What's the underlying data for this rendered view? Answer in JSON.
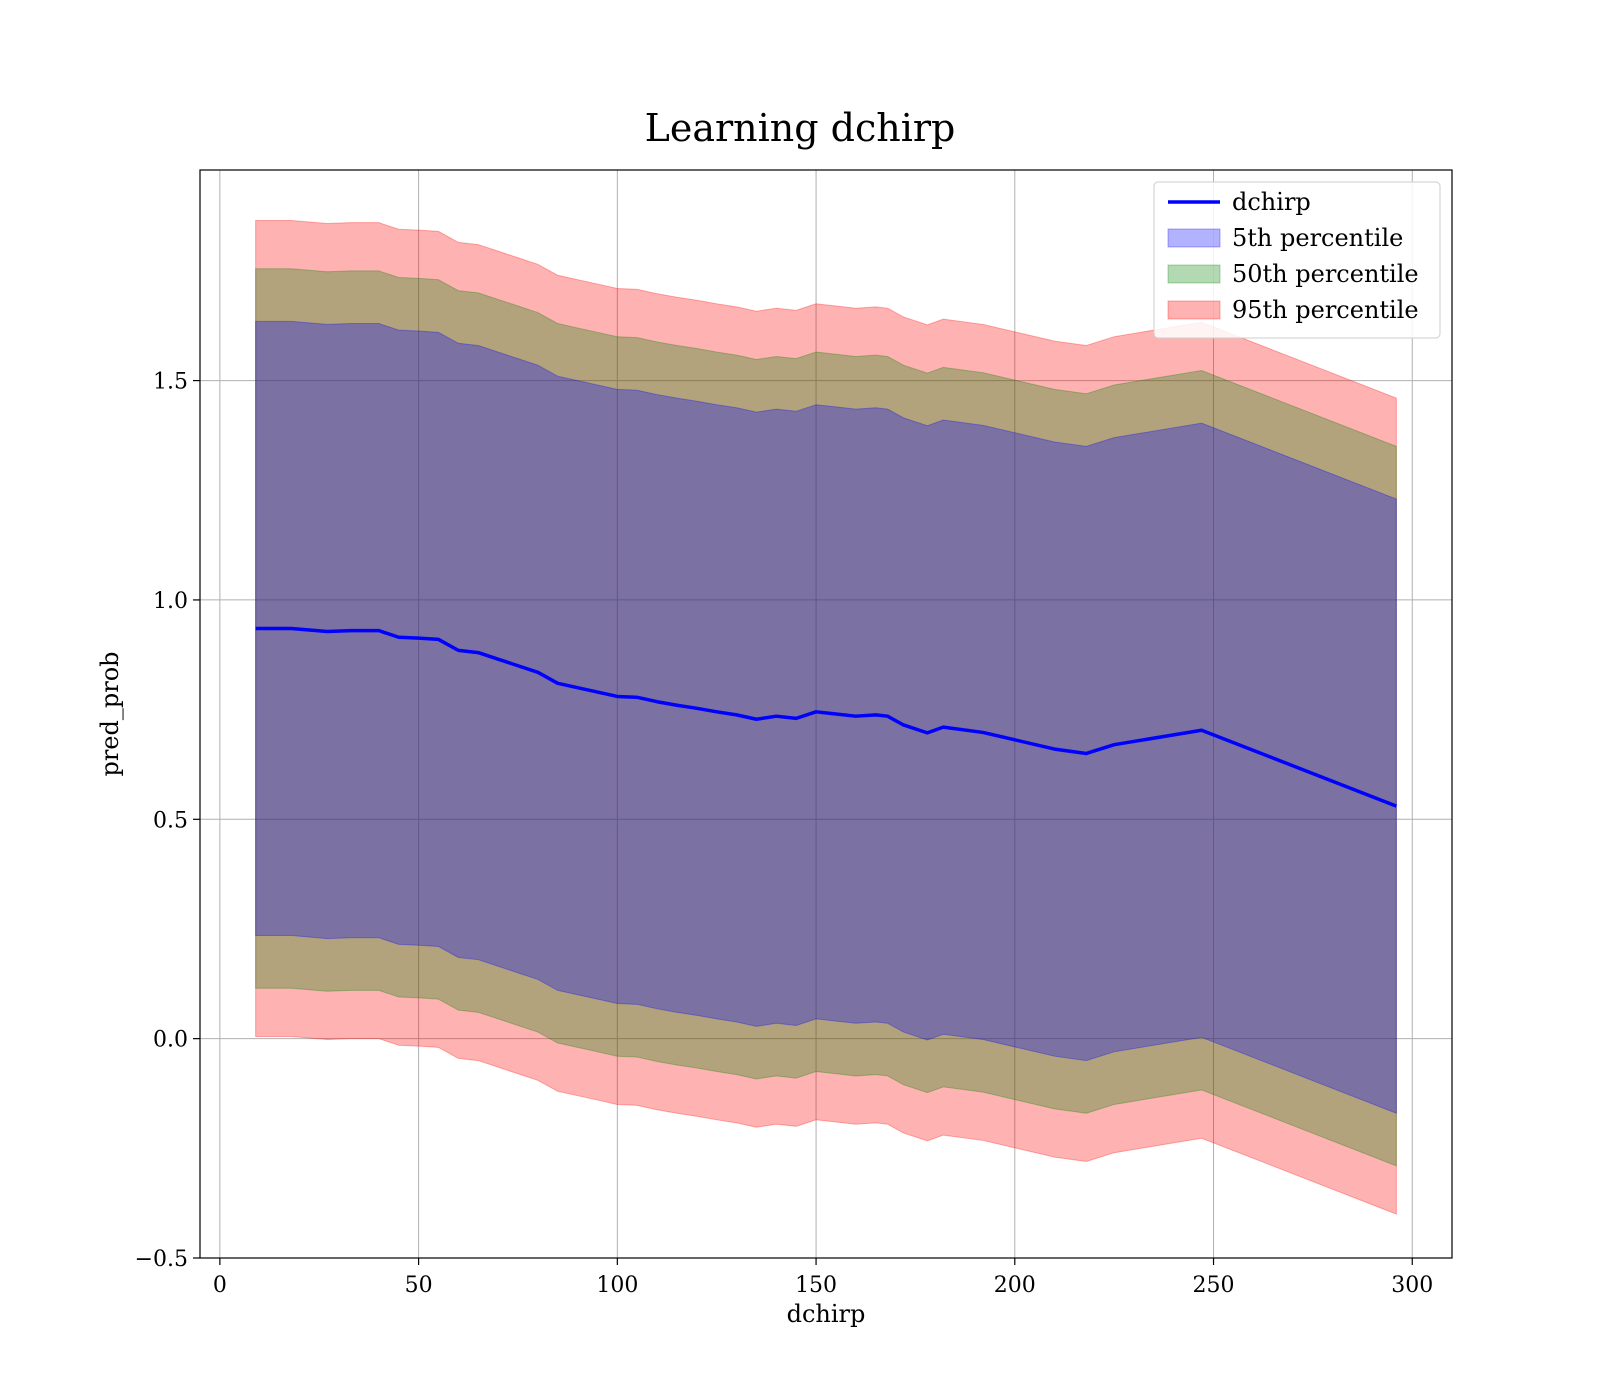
{
  "chart_data": {
    "type": "line",
    "title": "Learning dchirp",
    "xlabel": "dchirp",
    "ylabel": "pred_prob",
    "xlim": [
      -5,
      310
    ],
    "ylim": [
      -0.5,
      1.98
    ],
    "xticks": [
      0,
      50,
      100,
      150,
      200,
      250,
      300
    ],
    "yticks": [
      -0.5,
      0.0,
      0.5,
      1.0,
      1.5
    ],
    "xtick_labels": [
      "0",
      "50",
      "100",
      "150",
      "200",
      "250",
      "300"
    ],
    "ytick_labels": [
      "−0.5",
      "0.0",
      "0.5",
      "1.0",
      "1.5"
    ],
    "grid": true,
    "legend_position": "top-right",
    "x": [
      9,
      18,
      27,
      33,
      40,
      45,
      50,
      55,
      60,
      65,
      70,
      75,
      80,
      85,
      90,
      95,
      100,
      105,
      110,
      115,
      120,
      125,
      130,
      135,
      140,
      145,
      150,
      155,
      160,
      165,
      168,
      172,
      178,
      182,
      192,
      210,
      218,
      225,
      247,
      296
    ],
    "series": [
      {
        "name": "dchirp",
        "kind": "line",
        "color": "#0000ff",
        "values": [
          0.935,
          0.935,
          0.928,
          0.93,
          0.93,
          0.915,
          0.913,
          0.91,
          0.885,
          0.88,
          0.865,
          0.85,
          0.835,
          0.81,
          0.8,
          0.79,
          0.78,
          0.778,
          0.768,
          0.76,
          0.753,
          0.745,
          0.738,
          0.728,
          0.735,
          0.73,
          0.745,
          0.74,
          0.735,
          0.738,
          0.735,
          0.715,
          0.697,
          0.71,
          0.698,
          0.66,
          0.65,
          0.67,
          0.703,
          0.53
        ]
      },
      {
        "name": "5th percentile",
        "kind": "band",
        "color": "#0000ff",
        "lower": [
          0.235,
          0.235,
          0.228,
          0.23,
          0.23,
          0.215,
          0.213,
          0.21,
          0.185,
          0.18,
          0.165,
          0.15,
          0.135,
          0.11,
          0.1,
          0.09,
          0.08,
          0.078,
          0.068,
          0.06,
          0.053,
          0.045,
          0.038,
          0.028,
          0.035,
          0.03,
          0.045,
          0.04,
          0.035,
          0.038,
          0.035,
          0.015,
          -0.003,
          0.01,
          -0.002,
          -0.04,
          -0.05,
          -0.03,
          0.003,
          -0.17
        ],
        "upper": [
          1.635,
          1.635,
          1.628,
          1.63,
          1.63,
          1.615,
          1.613,
          1.61,
          1.585,
          1.58,
          1.565,
          1.55,
          1.535,
          1.51,
          1.5,
          1.49,
          1.48,
          1.478,
          1.468,
          1.46,
          1.453,
          1.445,
          1.438,
          1.428,
          1.435,
          1.43,
          1.445,
          1.44,
          1.435,
          1.438,
          1.435,
          1.415,
          1.397,
          1.41,
          1.398,
          1.36,
          1.35,
          1.37,
          1.403,
          1.23
        ]
      },
      {
        "name": "50th percentile",
        "kind": "band",
        "color": "#008000",
        "lower": [
          0.115,
          0.115,
          0.108,
          0.11,
          0.11,
          0.095,
          0.093,
          0.09,
          0.065,
          0.06,
          0.045,
          0.03,
          0.015,
          -0.01,
          -0.02,
          -0.03,
          -0.04,
          -0.042,
          -0.052,
          -0.06,
          -0.067,
          -0.075,
          -0.082,
          -0.092,
          -0.085,
          -0.09,
          -0.075,
          -0.08,
          -0.085,
          -0.082,
          -0.085,
          -0.105,
          -0.123,
          -0.11,
          -0.122,
          -0.16,
          -0.17,
          -0.15,
          -0.117,
          -0.29
        ],
        "upper": [
          1.755,
          1.755,
          1.748,
          1.75,
          1.75,
          1.735,
          1.733,
          1.73,
          1.705,
          1.7,
          1.685,
          1.67,
          1.655,
          1.63,
          1.62,
          1.61,
          1.6,
          1.598,
          1.588,
          1.58,
          1.573,
          1.565,
          1.558,
          1.548,
          1.555,
          1.55,
          1.565,
          1.56,
          1.555,
          1.558,
          1.555,
          1.535,
          1.517,
          1.53,
          1.518,
          1.48,
          1.47,
          1.49,
          1.523,
          1.35
        ]
      },
      {
        "name": "95th percentile",
        "kind": "band",
        "color": "#ff0000",
        "lower": [
          0.005,
          0.005,
          -0.002,
          0.0,
          0.0,
          -0.015,
          -0.017,
          -0.02,
          -0.045,
          -0.05,
          -0.065,
          -0.08,
          -0.095,
          -0.12,
          -0.13,
          -0.14,
          -0.15,
          -0.152,
          -0.162,
          -0.17,
          -0.177,
          -0.185,
          -0.192,
          -0.202,
          -0.195,
          -0.2,
          -0.185,
          -0.19,
          -0.195,
          -0.192,
          -0.195,
          -0.215,
          -0.233,
          -0.22,
          -0.232,
          -0.27,
          -0.28,
          -0.26,
          -0.227,
          -0.4
        ],
        "upper": [
          1.865,
          1.865,
          1.858,
          1.86,
          1.86,
          1.845,
          1.843,
          1.84,
          1.815,
          1.81,
          1.795,
          1.78,
          1.765,
          1.74,
          1.73,
          1.72,
          1.71,
          1.708,
          1.698,
          1.69,
          1.683,
          1.675,
          1.668,
          1.658,
          1.665,
          1.66,
          1.675,
          1.67,
          1.665,
          1.668,
          1.665,
          1.645,
          1.627,
          1.64,
          1.628,
          1.59,
          1.58,
          1.6,
          1.633,
          1.46
        ]
      }
    ]
  }
}
